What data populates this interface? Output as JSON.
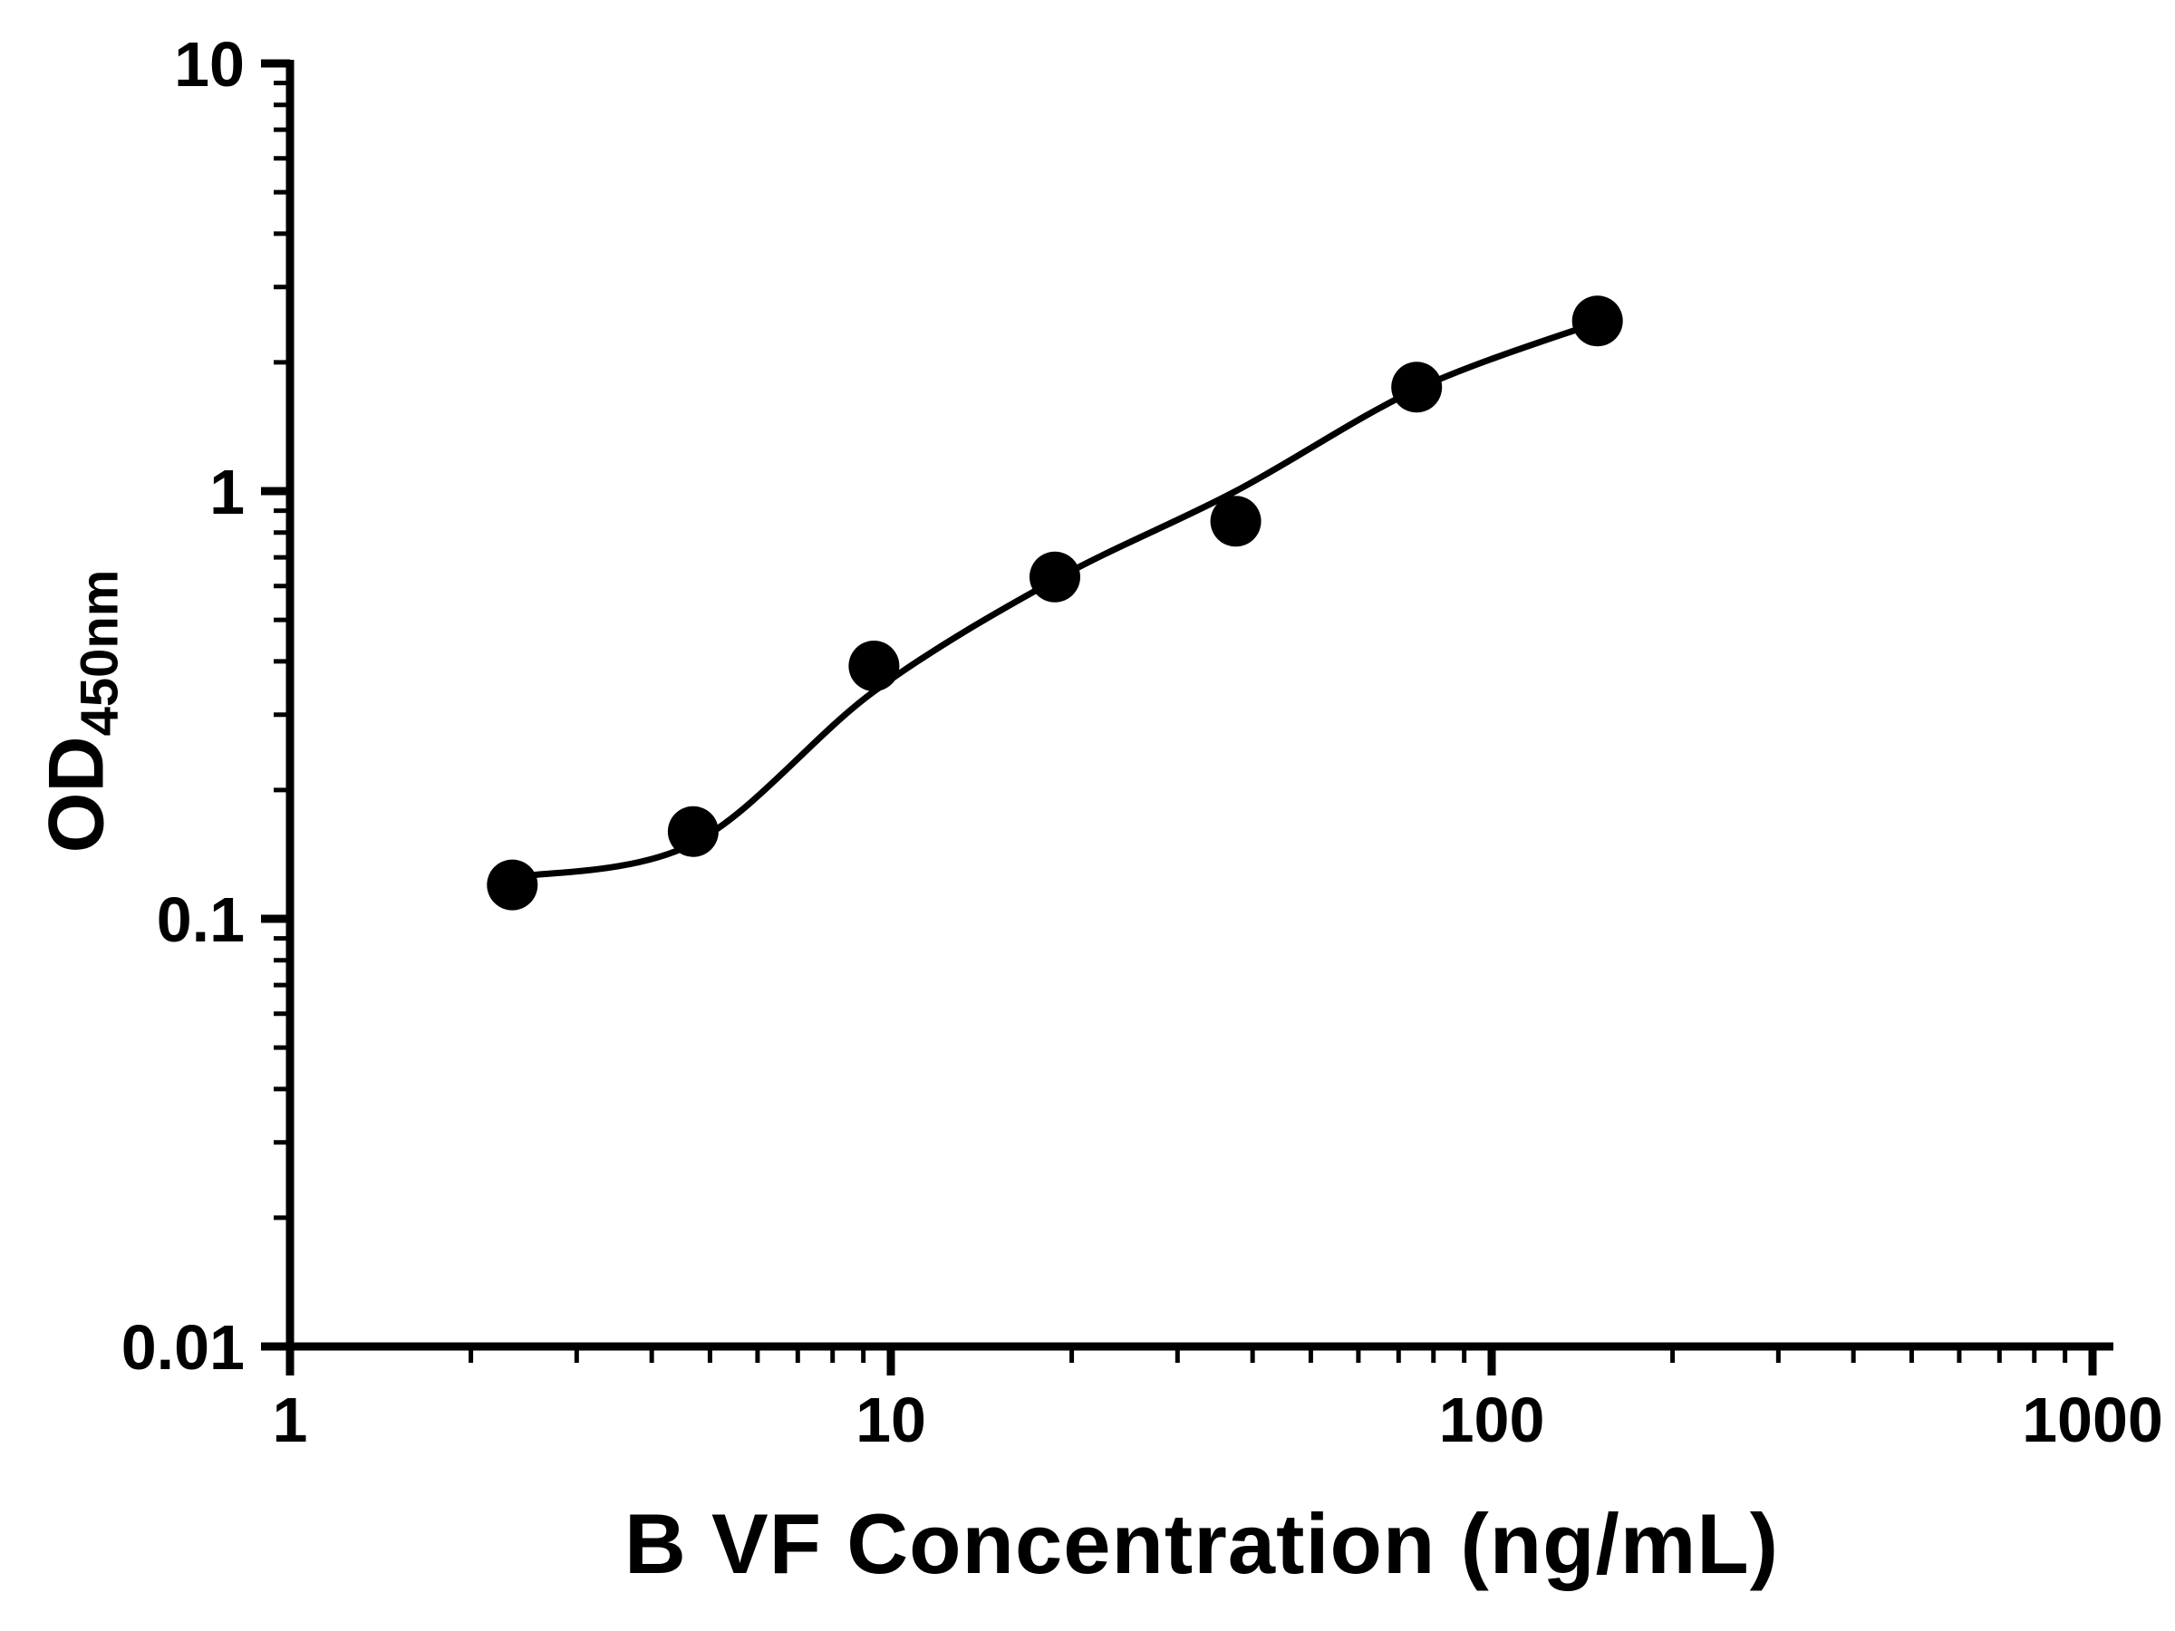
{
  "page": {
    "background_color": "#ffffff"
  },
  "chart_data": {
    "type": "scatter",
    "title": "",
    "xlabel": "B VF Concentration (ng/mL)",
    "ylabel_main": "OD",
    "ylabel_sub": "450nm",
    "x_scale": "log",
    "y_scale": "log",
    "xlim": [
      1,
      1000
    ],
    "ylim": [
      0.01,
      10
    ],
    "grid": false,
    "legend": "none",
    "x_ticks": [
      {
        "value": 1,
        "label": "1"
      },
      {
        "value": 10,
        "label": "10"
      },
      {
        "value": 100,
        "label": "100"
      },
      {
        "value": 1000,
        "label": "1000"
      }
    ],
    "y_ticks": [
      {
        "value": 10,
        "label": "10"
      },
      {
        "value": 1,
        "label": "1"
      },
      {
        "value": 0.1,
        "label": "0.1"
      },
      {
        "value": 0.01,
        "label": "0.01"
      }
    ],
    "series": [
      {
        "name": "standard-curve-points",
        "marker": "circle",
        "color": "#000000",
        "x": [
          2.344,
          4.688,
          9.375,
          18.75,
          37.5,
          75,
          150
        ],
        "y": [
          0.12,
          0.16,
          0.39,
          0.63,
          0.85,
          1.75,
          2.5
        ]
      }
    ],
    "fit_curve": {
      "name": "4pl-fit-curve",
      "color": "#000000",
      "x": [
        2.344,
        4.688,
        9.375,
        18.75,
        37.5,
        75,
        150
      ],
      "y": [
        0.125,
        0.15,
        0.34,
        0.62,
        1.0,
        1.73,
        2.48
      ]
    },
    "axis_color": "#000000",
    "marker_color": "#000000",
    "line_color": "#000000"
  }
}
